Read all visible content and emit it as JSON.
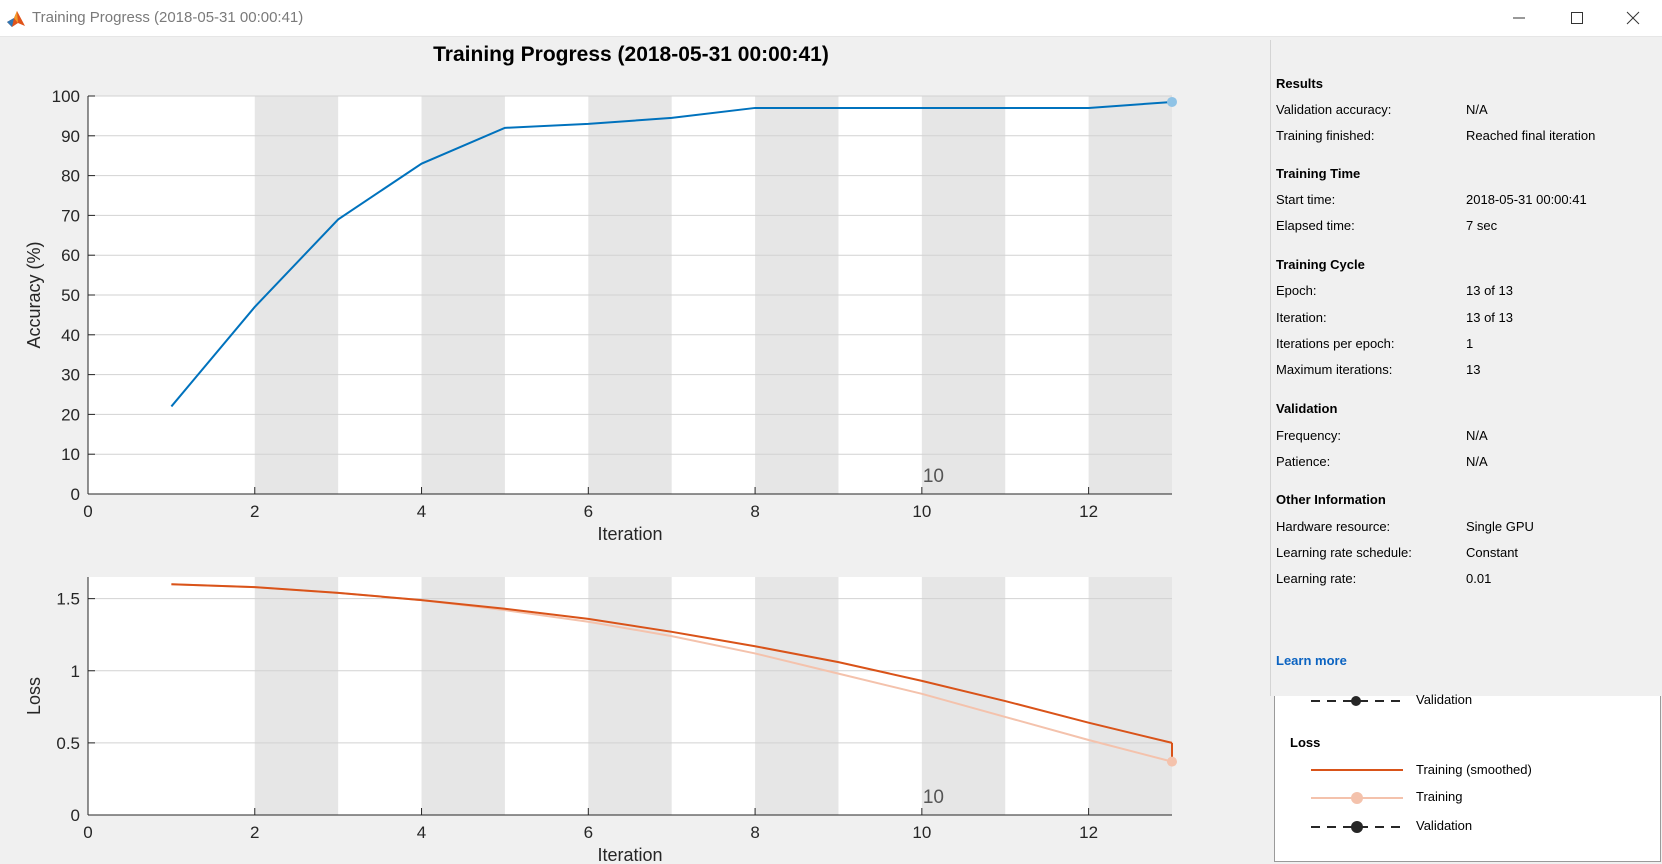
{
  "window": {
    "title": "Training Progress (2018-05-31 00:00:41)"
  },
  "plot": {
    "title": "Training Progress (2018-05-31 00:00:41)",
    "exponent_label": "10"
  },
  "chart_data": [
    {
      "type": "line",
      "title": "",
      "xlabel": "Iteration",
      "ylabel": "Accuracy (%)",
      "xlim": [
        0,
        13
      ],
      "ylim": [
        0,
        100
      ],
      "x_ticks": [
        0,
        2,
        4,
        6,
        8,
        10,
        12
      ],
      "y_ticks": [
        0,
        10,
        20,
        30,
        40,
        50,
        60,
        70,
        80,
        90,
        100
      ],
      "grid": "horizontal",
      "epoch_shading": "alternate",
      "series": [
        {
          "color": "#0072bd",
          "x": [
            1,
            2,
            3,
            4,
            5,
            6,
            7,
            8,
            9,
            10,
            11,
            12,
            13
          ],
          "values": [
            22,
            47,
            69,
            83,
            92,
            93,
            94.5,
            97,
            97,
            97,
            97,
            97,
            98.5
          ]
        }
      ]
    },
    {
      "type": "line",
      "title": "",
      "xlabel": "Iteration",
      "ylabel": "Loss",
      "xlim": [
        0,
        13
      ],
      "ylim": [
        0,
        1.65
      ],
      "x_ticks": [
        0,
        2,
        4,
        6,
        8,
        10,
        12
      ],
      "y_ticks": [
        0,
        0.5,
        1,
        1.5
      ],
      "y_tick_labels": [
        "0",
        "0.5",
        "1",
        "1.5"
      ],
      "grid": "horizontal",
      "epoch_shading": "alternate",
      "series": [
        {
          "name": "Training",
          "color": "#f4c2ac",
          "x": [
            1,
            2,
            3,
            4,
            5,
            6,
            7,
            8,
            9,
            10,
            11,
            12,
            13
          ],
          "values": [
            1.6,
            1.58,
            1.54,
            1.49,
            1.42,
            1.34,
            1.24,
            1.12,
            0.98,
            0.84,
            0.68,
            0.52,
            0.37
          ]
        },
        {
          "name": "Training (smoothed)",
          "color": "#d95319",
          "x": [
            1,
            2,
            3,
            4,
            5,
            6,
            7,
            8,
            9,
            10,
            11,
            12,
            13
          ],
          "values": [
            1.6,
            1.58,
            1.54,
            1.49,
            1.43,
            1.36,
            1.27,
            1.17,
            1.06,
            0.93,
            0.79,
            0.64,
            0.5
          ]
        }
      ]
    }
  ],
  "info": {
    "results": {
      "title": "Results",
      "rows": [
        {
          "label": "Validation accuracy:",
          "value": "N/A"
        },
        {
          "label": "Training finished:",
          "value": "Reached final iteration"
        }
      ]
    },
    "training_time": {
      "title": "Training Time",
      "rows": [
        {
          "label": "Start time:",
          "value": "2018-05-31 00:00:41"
        },
        {
          "label": "Elapsed time:",
          "value": "7 sec"
        }
      ]
    },
    "training_cycle": {
      "title": "Training Cycle",
      "rows": [
        {
          "label": "Epoch:",
          "value": "13 of 13"
        },
        {
          "label": "Iteration:",
          "value": "13 of 13"
        },
        {
          "label": "Iterations per epoch:",
          "value": "1"
        },
        {
          "label": "Maximum iterations:",
          "value": "13"
        }
      ]
    },
    "validation": {
      "title": "Validation",
      "rows": [
        {
          "label": "Frequency:",
          "value": "N/A"
        },
        {
          "label": "Patience:",
          "value": "N/A"
        }
      ]
    },
    "other": {
      "title": "Other Information",
      "rows": [
        {
          "label": "Hardware resource:",
          "value": "Single GPU"
        },
        {
          "label": "Learning rate schedule:",
          "value": "Constant"
        },
        {
          "label": "Learning rate:",
          "value": "0.01"
        }
      ]
    },
    "learn_more": "Learn more"
  },
  "legend": {
    "accuracy_validation_label": "Validation",
    "loss_title": "Loss",
    "items": [
      {
        "label": "Training (smoothed)",
        "color": "#d95319",
        "style": "solid"
      },
      {
        "label": "Training",
        "color": "#f4c2ac",
        "style": "solid-marker"
      },
      {
        "label": "Validation",
        "color": "#262626",
        "style": "dashed-marker"
      }
    ]
  }
}
